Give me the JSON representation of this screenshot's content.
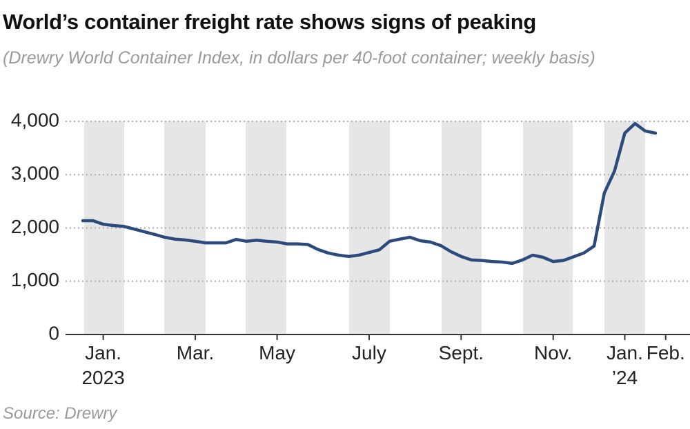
{
  "chart_data": {
    "type": "line",
    "title": "World’s container freight rate shows signs of peaking",
    "subtitle": "(Drewry World Container Index, in dollars per 40-foot container; weekly basis)",
    "source": "Source: Drewry",
    "categories": [
      null,
      null,
      "Jan.\n2023",
      null,
      null,
      null,
      null,
      null,
      null,
      null,
      null,
      "Mar.",
      null,
      null,
      null,
      null,
      null,
      null,
      null,
      "May",
      null,
      null,
      null,
      null,
      null,
      null,
      null,
      null,
      "July",
      null,
      null,
      null,
      null,
      null,
      null,
      null,
      null,
      "Sept.",
      null,
      null,
      null,
      null,
      null,
      null,
      null,
      null,
      "Nov.",
      null,
      null,
      null,
      null,
      null,
      null,
      "Jan.\n’24",
      null,
      null,
      null,
      "Feb."
    ],
    "series": [
      {
        "color": "#2c4a7c",
        "values": [
          2136,
          2136,
          2070,
          2045,
          2030,
          1980,
          1930,
          1880,
          1825,
          1790,
          1775,
          1750,
          1720,
          1720,
          1720,
          1785,
          1750,
          1770,
          1750,
          1735,
          1700,
          1700,
          1690,
          1595,
          1530,
          1490,
          1465,
          1490,
          1540,
          1590,
          1750,
          1790,
          1825,
          1760,
          1735,
          1670,
          1555,
          1465,
          1400,
          1390,
          1370,
          1360,
          1335,
          1400,
          1490,
          1450,
          1370,
          1390,
          1460,
          1530,
          1660,
          2655,
          3070,
          3780,
          3960,
          3820,
          3780,
          null
        ]
      }
    ],
    "ylim": [
      0,
      4000
    ],
    "yticks": [
      0,
      {
        "value": 1000,
        "label": "1,000"
      },
      {
        "value": 2000,
        "label": "2,000"
      },
      {
        "value": 3000,
        "label": "3,000"
      },
      {
        "value": 4000,
        "label": "4,000"
      }
    ],
    "grid": true
  }
}
